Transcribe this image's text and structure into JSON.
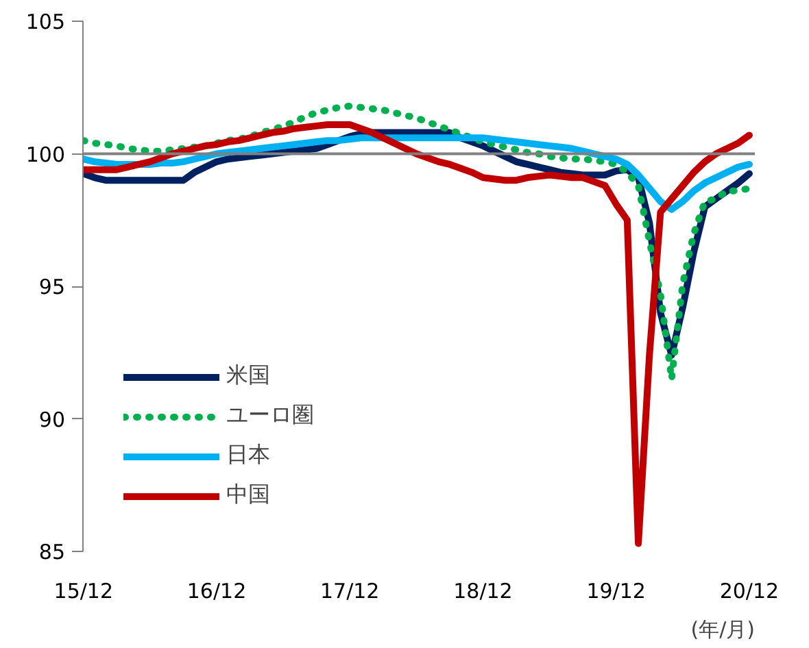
{
  "chart_data": {
    "type": "line",
    "xlabel": "(年/月)",
    "categories": [
      "15/12",
      null,
      null,
      null,
      null,
      null,
      null,
      null,
      null,
      null,
      null,
      null,
      "16/12",
      null,
      null,
      null,
      null,
      null,
      null,
      null,
      null,
      null,
      null,
      null,
      "17/12",
      null,
      null,
      null,
      null,
      null,
      null,
      null,
      null,
      null,
      null,
      null,
      "18/12",
      null,
      null,
      null,
      null,
      null,
      null,
      null,
      null,
      null,
      null,
      null,
      "19/12",
      null,
      null,
      null,
      null,
      null,
      null,
      null,
      null,
      null,
      null,
      null,
      "20/12"
    ],
    "ylim": [
      85,
      105
    ],
    "yticks": [
      85,
      90,
      95,
      100,
      105
    ],
    "ref_lines": [
      {
        "axis": "y",
        "value": 100,
        "color": "#808080"
      }
    ],
    "grid": false,
    "legend": "bottom left",
    "series": [
      {
        "name": "米国",
        "color": "#002060",
        "line_style": "solid",
        "values": [
          99.25,
          99.1,
          99.0,
          99.0,
          99.0,
          99.0,
          99.0,
          99.0,
          99.0,
          99.0,
          99.3,
          99.5,
          99.7,
          99.8,
          99.85,
          99.9,
          99.95,
          100.0,
          100.05,
          100.1,
          100.15,
          100.2,
          100.35,
          100.5,
          100.65,
          100.75,
          100.8,
          100.8,
          100.8,
          100.8,
          100.8,
          100.8,
          100.8,
          100.8,
          100.6,
          100.45,
          100.3,
          100.1,
          99.9,
          99.7,
          99.6,
          99.5,
          99.4,
          99.3,
          99.25,
          99.2,
          99.2,
          99.2,
          99.35,
          99.4,
          99.1,
          97.4,
          94.0,
          92.4,
          94.2,
          96.3,
          98.0,
          98.3,
          98.6,
          98.9,
          99.25
        ]
      },
      {
        "name": "ユーロ圏",
        "color": "#00b050",
        "line_style": "dotted",
        "values": [
          100.5,
          100.4,
          100.35,
          100.3,
          100.2,
          100.15,
          100.1,
          100.1,
          100.15,
          100.2,
          100.25,
          100.3,
          100.4,
          100.5,
          100.55,
          100.65,
          100.8,
          100.9,
          101.05,
          101.2,
          101.4,
          101.55,
          101.65,
          101.75,
          101.8,
          101.75,
          101.7,
          101.65,
          101.55,
          101.45,
          101.35,
          101.2,
          101.05,
          100.9,
          100.75,
          100.6,
          100.45,
          100.35,
          100.25,
          100.15,
          100.05,
          100.0,
          99.9,
          99.85,
          99.8,
          99.8,
          99.75,
          99.7,
          99.6,
          99.3,
          98.8,
          96.7,
          94.7,
          91.5,
          95.1,
          97.0,
          98.2,
          98.3,
          98.6,
          98.6,
          98.7
        ]
      },
      {
        "name": "日本",
        "color": "#00b0f0",
        "line_style": "solid",
        "values": [
          99.8,
          99.7,
          99.65,
          99.6,
          99.6,
          99.6,
          99.6,
          99.65,
          99.65,
          99.7,
          99.8,
          99.9,
          100.0,
          100.05,
          100.1,
          100.15,
          100.2,
          100.25,
          100.3,
          100.35,
          100.4,
          100.45,
          100.5,
          100.5,
          100.55,
          100.6,
          100.6,
          100.6,
          100.6,
          100.6,
          100.6,
          100.6,
          100.6,
          100.6,
          100.6,
          100.6,
          100.6,
          100.55,
          100.5,
          100.45,
          100.4,
          100.35,
          100.3,
          100.25,
          100.2,
          100.1,
          100.0,
          99.9,
          99.8,
          99.6,
          99.2,
          98.7,
          98.2,
          97.9,
          98.2,
          98.6,
          98.9,
          99.1,
          99.3,
          99.5,
          99.6
        ]
      },
      {
        "name": "中国",
        "color": "#c00000",
        "line_style": "solid",
        "values": [
          99.4,
          99.4,
          99.4,
          99.4,
          99.5,
          99.6,
          99.7,
          99.85,
          100.0,
          100.1,
          100.2,
          100.3,
          100.35,
          100.45,
          100.5,
          100.6,
          100.7,
          100.8,
          100.85,
          100.95,
          101.0,
          101.05,
          101.1,
          101.1,
          101.1,
          100.95,
          100.8,
          100.6,
          100.4,
          100.2,
          100.0,
          99.85,
          99.7,
          99.6,
          99.45,
          99.3,
          99.1,
          99.05,
          99.0,
          99.0,
          99.1,
          99.15,
          99.2,
          99.15,
          99.1,
          99.1,
          98.95,
          98.8,
          98.1,
          97.5,
          85.3,
          92.4,
          97.8,
          98.3,
          98.8,
          99.3,
          99.7,
          100.0,
          100.2,
          100.4,
          100.7
        ]
      }
    ]
  }
}
